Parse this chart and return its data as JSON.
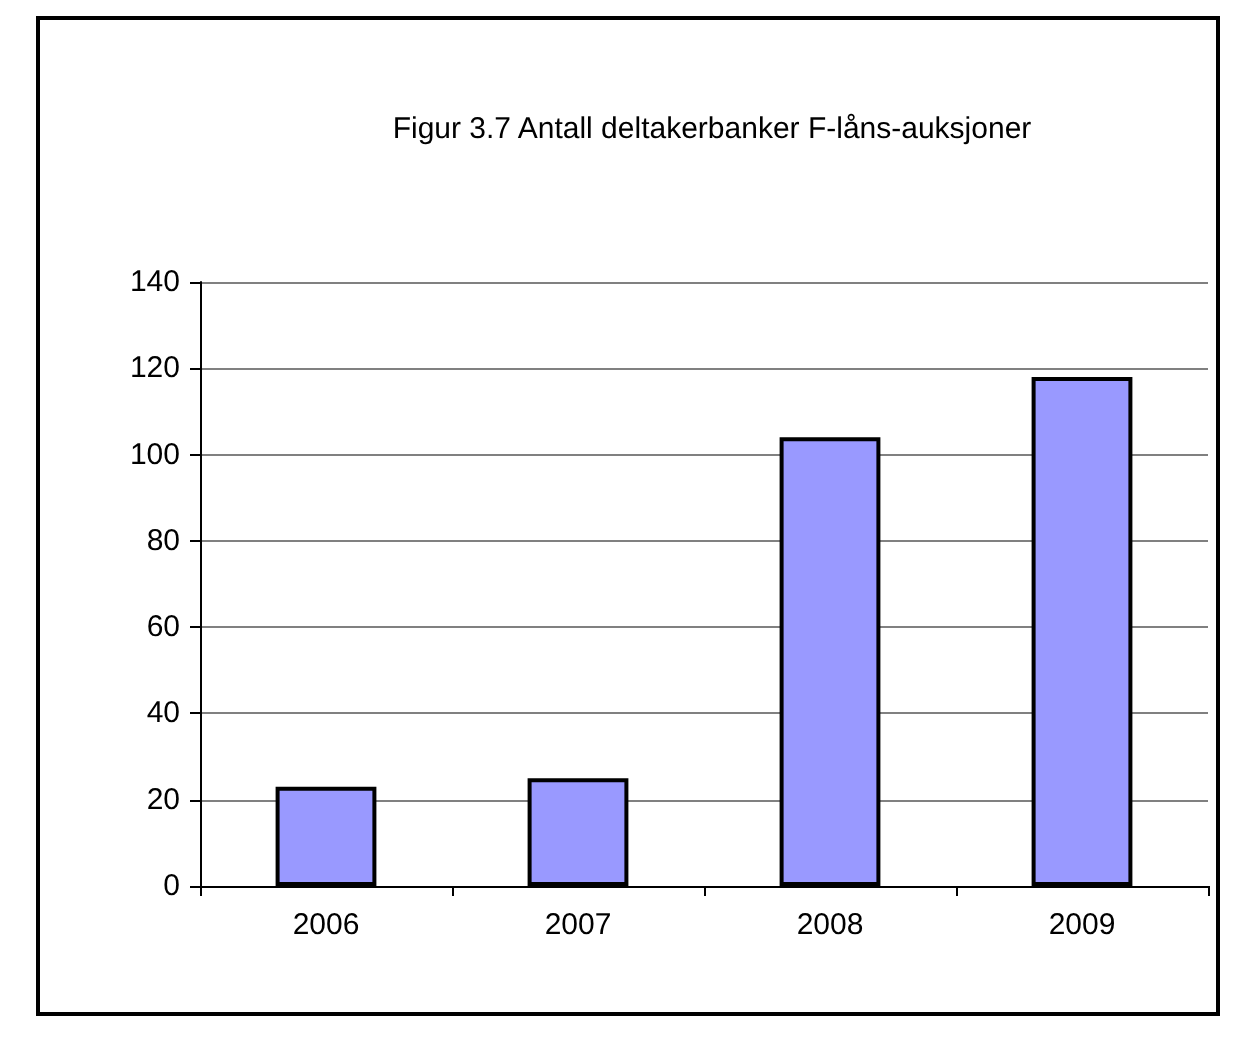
{
  "chart_data": {
    "type": "bar",
    "title": "Figur 3.7 Antall deltakerbanker F-låns-auksjoner",
    "categories": [
      "2006",
      "2007",
      "2008",
      "2009"
    ],
    "values": [
      23,
      25,
      104,
      118
    ],
    "color": "#9999ff",
    "ylim": [
      0,
      140
    ],
    "yticks": [
      0,
      20,
      40,
      60,
      80,
      100,
      120,
      140
    ],
    "grid": "y"
  }
}
